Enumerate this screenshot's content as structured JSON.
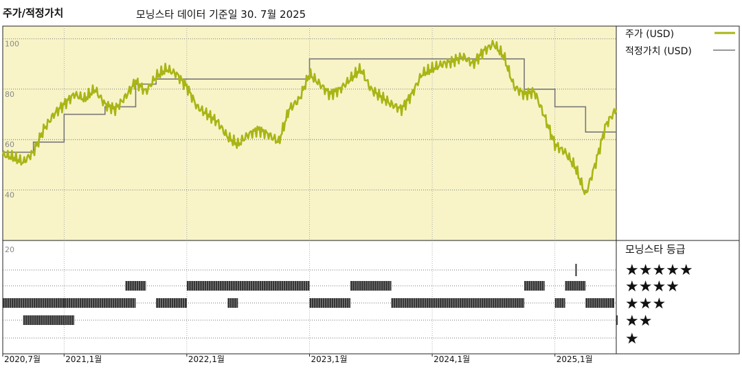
{
  "header": {
    "title": "주가/적정가치",
    "subtitle": "모닝스타 데이터 기준일 30. 7월 2025"
  },
  "colors": {
    "price": "#a9b515",
    "fair_value": "#777777",
    "upper_bg": "#f8f4c8",
    "rating_bar": "#333333"
  },
  "chart_data": [
    {
      "type": "line",
      "y_ticks": [
        "100",
        "80",
        "60",
        "40"
      ],
      "ylim": [
        20,
        105
      ],
      "x_ticks": [
        "2020,7월",
        "2021,1월",
        "2022,1월",
        "2023,1월",
        "2024,1월",
        "2025,1월"
      ],
      "series": [
        {
          "name": "주가 (USD)",
          "x": [
            "2020-07",
            "2020-08",
            "2020-09",
            "2020-10",
            "2020-11",
            "2020-12",
            "2021-01",
            "2021-02",
            "2021-03",
            "2021-04",
            "2021-05",
            "2021-06",
            "2021-07",
            "2021-08",
            "2021-09",
            "2021-10",
            "2021-11",
            "2021-12",
            "2022-01",
            "2022-02",
            "2022-03",
            "2022-04",
            "2022-05",
            "2022-06",
            "2022-07",
            "2022-08",
            "2022-09",
            "2022-10",
            "2022-11",
            "2022-12",
            "2023-01",
            "2023-02",
            "2023-03",
            "2023-04",
            "2023-05",
            "2023-06",
            "2023-07",
            "2023-08",
            "2023-09",
            "2023-10",
            "2023-11",
            "2023-12",
            "2024-01",
            "2024-02",
            "2024-03",
            "2024-04",
            "2024-05",
            "2024-06",
            "2024-07",
            "2024-08",
            "2024-09",
            "2024-10",
            "2024-11",
            "2024-12",
            "2025-01",
            "2025-02",
            "2025-03",
            "2025-04",
            "2025-05",
            "2025-06",
            "2025-07"
          ],
          "values": [
            54,
            53,
            51,
            55,
            64,
            70,
            74,
            78,
            76,
            80,
            74,
            72,
            77,
            83,
            79,
            85,
            88,
            86,
            81,
            73,
            70,
            67,
            61,
            58,
            62,
            64,
            62,
            59,
            72,
            76,
            86,
            82,
            78,
            80,
            84,
            88,
            80,
            77,
            74,
            72,
            78,
            86,
            88,
            90,
            91,
            93,
            90,
            95,
            98,
            93,
            81,
            78,
            79,
            69,
            58,
            55,
            49,
            38,
            51,
            66,
            72
          ]
        },
        {
          "name": "적정가치 (USD)",
          "x": [
            "2020-07",
            "2020-10",
            "2021-01",
            "2021-05",
            "2021-08",
            "2021-10",
            "2022-01",
            "2022-04",
            "2022-08",
            "2022-11",
            "2023-01",
            "2023-04",
            "2023-08",
            "2023-11",
            "2024-01",
            "2024-04",
            "2024-07",
            "2024-10",
            "2025-01",
            "2025-04",
            "2025-07"
          ],
          "values": [
            55,
            59,
            70,
            73,
            82,
            84,
            84,
            84,
            84,
            84,
            92,
            92,
            92,
            92,
            92,
            92,
            92,
            80,
            73,
            63,
            63
          ]
        }
      ]
    },
    {
      "type": "table",
      "title": "모닝스타 등급",
      "rows": [
        "★★★★★",
        "★★★★",
        "★★★",
        "★★",
        "★"
      ],
      "y_ticks": [
        "20"
      ],
      "periods": [
        {
          "start": "2020-07",
          "end": "2021-01",
          "stars": 3
        },
        {
          "start": "2020-09",
          "end": "2021-02",
          "stars": 2
        },
        {
          "start": "2021-01",
          "end": "2021-08",
          "stars": 3
        },
        {
          "start": "2021-07",
          "end": "2021-09",
          "stars": 4
        },
        {
          "start": "2021-10",
          "end": "2022-01",
          "stars": 3
        },
        {
          "start": "2022-01",
          "end": "2023-01",
          "stars": 4
        },
        {
          "start": "2022-05",
          "end": "2022-06",
          "stars": 3
        },
        {
          "start": "2023-01",
          "end": "2023-05",
          "stars": 3
        },
        {
          "start": "2023-05",
          "end": "2023-09",
          "stars": 4
        },
        {
          "start": "2023-09",
          "end": "2024-10",
          "stars": 3
        },
        {
          "start": "2024-10",
          "end": "2024-12",
          "stars": 4
        },
        {
          "start": "2025-01",
          "end": "2025-02",
          "stars": 3
        },
        {
          "start": "2025-02",
          "end": "2025-04",
          "stars": 4
        },
        {
          "start": "2025-03",
          "end": "2025-03",
          "stars": 5
        },
        {
          "start": "2025-04",
          "end": "2025-07",
          "stars": 3
        },
        {
          "start": "2025-07",
          "end": "2025-07",
          "stars": 2
        }
      ]
    }
  ]
}
